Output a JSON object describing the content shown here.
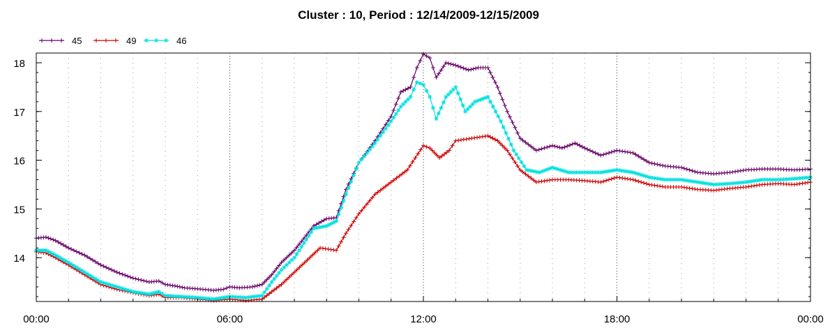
{
  "chart_data": {
    "type": "line",
    "title": "Cluster : 10, Period : 12/14/2009-12/15/2009",
    "xlabel": "",
    "ylabel": "",
    "x_unit": "hours",
    "xlim": [
      0,
      24
    ],
    "ylim": [
      13.1,
      18.2
    ],
    "x_ticks": [
      0,
      6,
      12,
      18,
      24
    ],
    "x_tick_labels": [
      "00:00",
      "06:00",
      "12:00",
      "18:00",
      "00:00"
    ],
    "y_ticks": [
      14,
      15,
      16,
      17,
      18
    ],
    "y_tick_labels": [
      "14",
      "15",
      "16",
      "17",
      "18"
    ],
    "grid": "dotted vertical lines",
    "legend_position": "top-left",
    "series": [
      {
        "name": "45",
        "color": "#660066",
        "marker": "plus",
        "points": [
          [
            0,
            14.4
          ],
          [
            0.3,
            14.42
          ],
          [
            0.6,
            14.35
          ],
          [
            1,
            14.2
          ],
          [
            1.5,
            14.05
          ],
          [
            2,
            13.85
          ],
          [
            2.5,
            13.7
          ],
          [
            3,
            13.58
          ],
          [
            3.5,
            13.5
          ],
          [
            3.8,
            13.52
          ],
          [
            4,
            13.45
          ],
          [
            4.3,
            13.42
          ],
          [
            4.6,
            13.38
          ],
          [
            5,
            13.36
          ],
          [
            5.5,
            13.33
          ],
          [
            5.8,
            13.35
          ],
          [
            6,
            13.4
          ],
          [
            6.3,
            13.38
          ],
          [
            6.7,
            13.4
          ],
          [
            7,
            13.45
          ],
          [
            7.3,
            13.65
          ],
          [
            7.6,
            13.9
          ],
          [
            8,
            14.15
          ],
          [
            8.3,
            14.4
          ],
          [
            8.6,
            14.65
          ],
          [
            9,
            14.8
          ],
          [
            9.3,
            14.82
          ],
          [
            9.6,
            15.4
          ],
          [
            10,
            15.95
          ],
          [
            10.5,
            16.4
          ],
          [
            11,
            16.9
          ],
          [
            11.3,
            17.4
          ],
          [
            11.6,
            17.5
          ],
          [
            11.8,
            17.9
          ],
          [
            12,
            18.18
          ],
          [
            12.2,
            18.1
          ],
          [
            12.4,
            17.7
          ],
          [
            12.7,
            18.0
          ],
          [
            13,
            17.95
          ],
          [
            13.4,
            17.85
          ],
          [
            13.7,
            17.9
          ],
          [
            14,
            17.9
          ],
          [
            14.3,
            17.5
          ],
          [
            14.6,
            17.0
          ],
          [
            15,
            16.45
          ],
          [
            15.5,
            16.2
          ],
          [
            16,
            16.3
          ],
          [
            16.3,
            16.25
          ],
          [
            16.7,
            16.35
          ],
          [
            17,
            16.25
          ],
          [
            17.5,
            16.1
          ],
          [
            18,
            16.2
          ],
          [
            18.5,
            16.15
          ],
          [
            19,
            15.95
          ],
          [
            19.5,
            15.88
          ],
          [
            20,
            15.85
          ],
          [
            20.5,
            15.75
          ],
          [
            21,
            15.72
          ],
          [
            21.5,
            15.75
          ],
          [
            22,
            15.8
          ],
          [
            22.5,
            15.82
          ],
          [
            23,
            15.82
          ],
          [
            23.5,
            15.8
          ],
          [
            24,
            15.82
          ]
        ]
      },
      {
        "name": "49",
        "color": "#cc0000",
        "marker": "plus",
        "points": [
          [
            0,
            14.12
          ],
          [
            0.3,
            14.1
          ],
          [
            0.6,
            14.0
          ],
          [
            1,
            13.85
          ],
          [
            1.5,
            13.65
          ],
          [
            2,
            13.45
          ],
          [
            2.5,
            13.35
          ],
          [
            3,
            13.28
          ],
          [
            3.5,
            13.22
          ],
          [
            3.8,
            13.25
          ],
          [
            4,
            13.18
          ],
          [
            4.5,
            13.18
          ],
          [
            5,
            13.15
          ],
          [
            5.5,
            13.12
          ],
          [
            6,
            13.15
          ],
          [
            6.5,
            13.12
          ],
          [
            7,
            13.15
          ],
          [
            7.3,
            13.3
          ],
          [
            7.6,
            13.45
          ],
          [
            8,
            13.7
          ],
          [
            8.4,
            13.95
          ],
          [
            8.8,
            14.2
          ],
          [
            9.3,
            14.15
          ],
          [
            9.6,
            14.5
          ],
          [
            10,
            14.9
          ],
          [
            10.5,
            15.3
          ],
          [
            11,
            15.55
          ],
          [
            11.5,
            15.8
          ],
          [
            12,
            16.3
          ],
          [
            12.2,
            16.25
          ],
          [
            12.5,
            16.05
          ],
          [
            12.8,
            16.2
          ],
          [
            13,
            16.4
          ],
          [
            13.5,
            16.45
          ],
          [
            14,
            16.5
          ],
          [
            14.3,
            16.4
          ],
          [
            14.6,
            16.2
          ],
          [
            15,
            15.8
          ],
          [
            15.5,
            15.55
          ],
          [
            16,
            15.6
          ],
          [
            16.5,
            15.6
          ],
          [
            17,
            15.58
          ],
          [
            17.5,
            15.55
          ],
          [
            18,
            15.65
          ],
          [
            18.5,
            15.6
          ],
          [
            19,
            15.5
          ],
          [
            19.5,
            15.45
          ],
          [
            20,
            15.45
          ],
          [
            20.5,
            15.4
          ],
          [
            21,
            15.38
          ],
          [
            21.5,
            15.42
          ],
          [
            22,
            15.45
          ],
          [
            22.5,
            15.5
          ],
          [
            23,
            15.52
          ],
          [
            23.5,
            15.5
          ],
          [
            24,
            15.55
          ]
        ]
      },
      {
        "name": "46",
        "color": "#00e0e0",
        "marker": "star",
        "points": [
          [
            0,
            14.15
          ],
          [
            0.3,
            14.15
          ],
          [
            0.6,
            14.05
          ],
          [
            1,
            13.9
          ],
          [
            1.5,
            13.7
          ],
          [
            2,
            13.5
          ],
          [
            2.5,
            13.4
          ],
          [
            3,
            13.3
          ],
          [
            3.5,
            13.25
          ],
          [
            3.8,
            13.3
          ],
          [
            4,
            13.22
          ],
          [
            4.5,
            13.2
          ],
          [
            5,
            13.18
          ],
          [
            5.5,
            13.15
          ],
          [
            6,
            13.2
          ],
          [
            6.5,
            13.18
          ],
          [
            7,
            13.22
          ],
          [
            7.3,
            13.5
          ],
          [
            7.6,
            13.75
          ],
          [
            8,
            14.0
          ],
          [
            8.3,
            14.3
          ],
          [
            8.6,
            14.6
          ],
          [
            9,
            14.65
          ],
          [
            9.3,
            14.75
          ],
          [
            9.6,
            15.3
          ],
          [
            10,
            15.95
          ],
          [
            10.5,
            16.35
          ],
          [
            11,
            16.8
          ],
          [
            11.3,
            17.1
          ],
          [
            11.6,
            17.3
          ],
          [
            11.8,
            17.6
          ],
          [
            12,
            17.55
          ],
          [
            12.2,
            17.3
          ],
          [
            12.4,
            16.85
          ],
          [
            12.7,
            17.3
          ],
          [
            13,
            17.5
          ],
          [
            13.3,
            17.0
          ],
          [
            13.6,
            17.2
          ],
          [
            14,
            17.3
          ],
          [
            14.4,
            16.8
          ],
          [
            14.8,
            16.2
          ],
          [
            15.2,
            15.8
          ],
          [
            15.6,
            15.75
          ],
          [
            16,
            15.85
          ],
          [
            16.5,
            15.75
          ],
          [
            17,
            15.75
          ],
          [
            17.5,
            15.75
          ],
          [
            18,
            15.8
          ],
          [
            18.5,
            15.75
          ],
          [
            19,
            15.65
          ],
          [
            19.5,
            15.6
          ],
          [
            20,
            15.6
          ],
          [
            20.5,
            15.55
          ],
          [
            21,
            15.5
          ],
          [
            21.5,
            15.52
          ],
          [
            22,
            15.55
          ],
          [
            22.5,
            15.6
          ],
          [
            23,
            15.6
          ],
          [
            23.5,
            15.62
          ],
          [
            24,
            15.65
          ]
        ]
      }
    ]
  }
}
